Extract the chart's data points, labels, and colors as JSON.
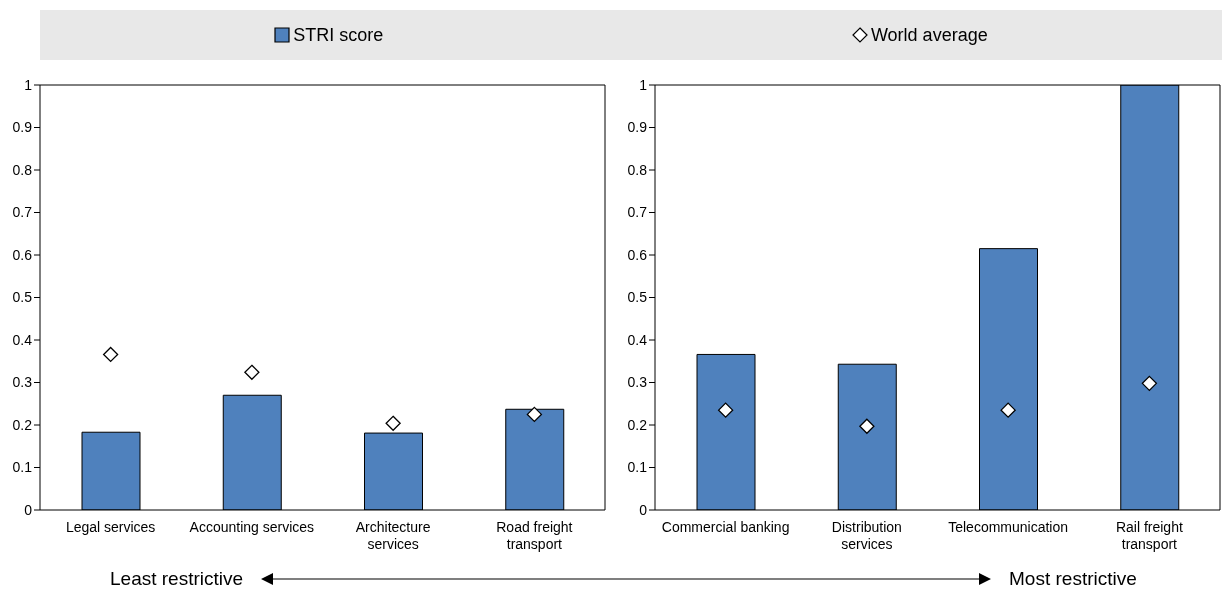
{
  "chart_data": [
    {
      "type": "bar",
      "categories": [
        "Legal services",
        "Accounting services",
        "Architecture services",
        "Road freight transport"
      ],
      "ylim": [
        0,
        1
      ],
      "yticks": [
        0,
        0.1,
        0.2,
        0.3,
        0.4,
        0.5,
        0.6,
        0.7,
        0.8,
        0.9,
        1
      ],
      "legend": "top",
      "marker": "diamond",
      "annotations": [
        "Least restrictive",
        "Most restrictive"
      ],
      "series": [
        {
          "name": "STRI score",
          "color": "#4f81bd",
          "values": [
            0.183,
            0.27,
            0.181,
            0.237
          ]
        },
        {
          "name": "World average",
          "type": "scatter",
          "color": "#ffffff",
          "values": [
            0.366,
            0.324,
            0.204,
            0.225
          ]
        }
      ]
    },
    {
      "type": "bar",
      "categories": [
        "Commercial banking",
        "Distribution services",
        "Telecommunication",
        "Rail freight transport"
      ],
      "ylim": [
        0,
        1
      ],
      "yticks": [
        0,
        0.1,
        0.2,
        0.3,
        0.4,
        0.5,
        0.6,
        0.7,
        0.8,
        0.9,
        1
      ],
      "marker": "diamond",
      "series": [
        {
          "name": "STRI score",
          "color": "#4f81bd",
          "values": [
            0.366,
            0.343,
            0.615,
            1
          ]
        },
        {
          "name": "World average",
          "type": "scatter",
          "color": "#ffffff",
          "values": [
            0.235,
            0.197,
            0.235,
            0.298
          ]
        }
      ]
    }
  ]
}
